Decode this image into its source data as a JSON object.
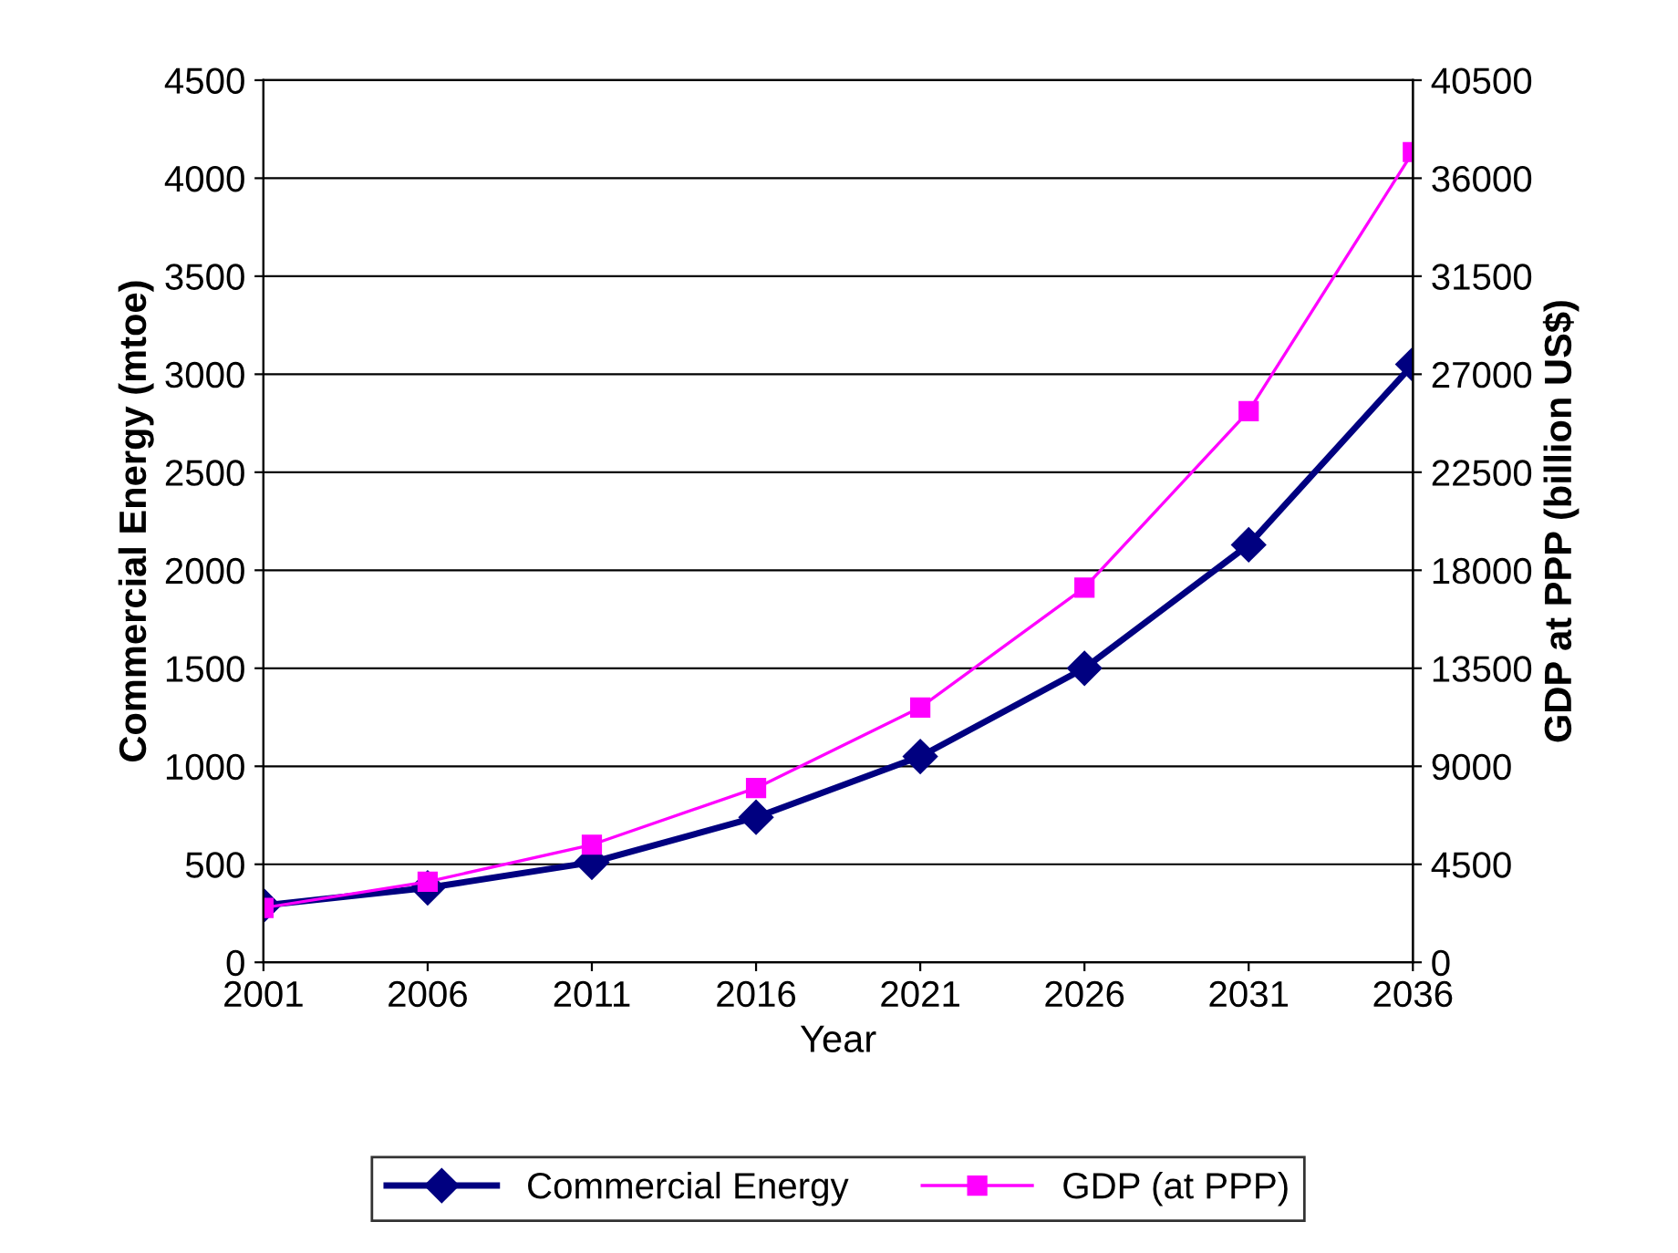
{
  "chart_data": {
    "type": "line",
    "xlabel": "Year",
    "ylabel": "Commercial Energy (mtoe)",
    "y2label": "GDP at PPP (billion US$)",
    "x": [
      2001,
      2006,
      2011,
      2016,
      2021,
      2026,
      2031,
      2036
    ],
    "xlim": [
      2001,
      2036
    ],
    "xticks": [
      2001,
      2006,
      2011,
      2016,
      2021,
      2026,
      2031,
      2036
    ],
    "ylim": [
      0,
      4500
    ],
    "yticks": [
      0,
      500,
      1000,
      1500,
      2000,
      2500,
      3000,
      3500,
      4000,
      4500
    ],
    "y2lim": [
      0,
      40500
    ],
    "y2ticks": [
      0,
      4500,
      9000,
      13500,
      18000,
      22500,
      27000,
      31500,
      36000,
      40500
    ],
    "grid": "y",
    "legend": "bottom",
    "series": [
      {
        "name": "Commercial Energy",
        "color": "#000080",
        "marker": "diamond",
        "values": [
          290,
          380,
          510,
          740,
          1050,
          1500,
          2130,
          3050
        ]
      },
      {
        "name": "GDP (at PPP)",
        "color": "#ff00ff",
        "marker": "square",
        "axis": "y2",
        "values": [
          2500,
          3700,
          5400,
          8000,
          11700,
          17200,
          25300,
          37200
        ]
      }
    ]
  }
}
